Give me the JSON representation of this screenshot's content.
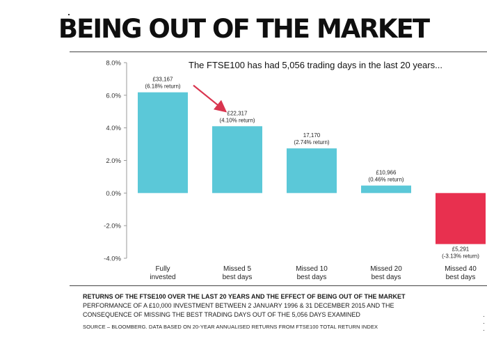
{
  "headline": "BEING OUT OF THE MARKET",
  "chart_data": {
    "type": "bar",
    "title": "The FTSE100 has had 5,056 trading days in the last 20 years...",
    "categories": [
      [
        "Fully",
        "invested"
      ],
      [
        "Missed 5",
        "best days"
      ],
      [
        "Missed 10",
        "best days"
      ],
      [
        "Missed 20",
        "best days"
      ],
      [
        "Missed 40",
        "best days"
      ]
    ],
    "values": [
      6.18,
      4.1,
      2.74,
      0.46,
      -3.13
    ],
    "data_labels": [
      [
        "£33,167",
        "(6.18% return)"
      ],
      [
        "£22,317",
        "(4.10% return)"
      ],
      [
        "17,170",
        "(2.74% return)"
      ],
      [
        "£10,966",
        "(0.46% return)"
      ],
      [
        "£5,291",
        "(-3.13% return)"
      ]
    ],
    "ylim": [
      -4,
      8
    ],
    "yticks": [
      -4,
      -2,
      0,
      2,
      4,
      6,
      8
    ],
    "ytick_labels": [
      "-4.0%",
      "-2.0%",
      "0.0%",
      "2.0%",
      "4.0%",
      "6.0%",
      "8.0%"
    ],
    "xlabel": "",
    "ylabel": "",
    "grid": false,
    "legend": "none",
    "colors": {
      "positive": "#5bc8d8",
      "negative": "#e8304f",
      "arrow": "#d9354f",
      "axis": "#9a9a9a"
    },
    "annotation": {
      "type": "arrow",
      "from_category": 0,
      "to_category": 1
    }
  },
  "footer": {
    "title": "RETURNS OF THE FTSE100 OVER THE LAST 20 YEARS AND THE EFFECT OF BEING OUT OF THE MARKET",
    "line1": "PERFORMANCE OF A £10,000 INVESTMENT BETWEEN 2 JANUARY 1996 & 31 DECEMBER 2015 AND THE",
    "line2": "CONSEQUENCE OF MISSING THE BEST TRADING DAYS OUT OF THE 5,056 DAYS EXAMINED",
    "source": "SOURCE – BLOOMBERG. DATA BASED ON 20-YEAR ANNUALISED RETURNS FROM FTSE100 TOTAL RETURN INDEX"
  }
}
